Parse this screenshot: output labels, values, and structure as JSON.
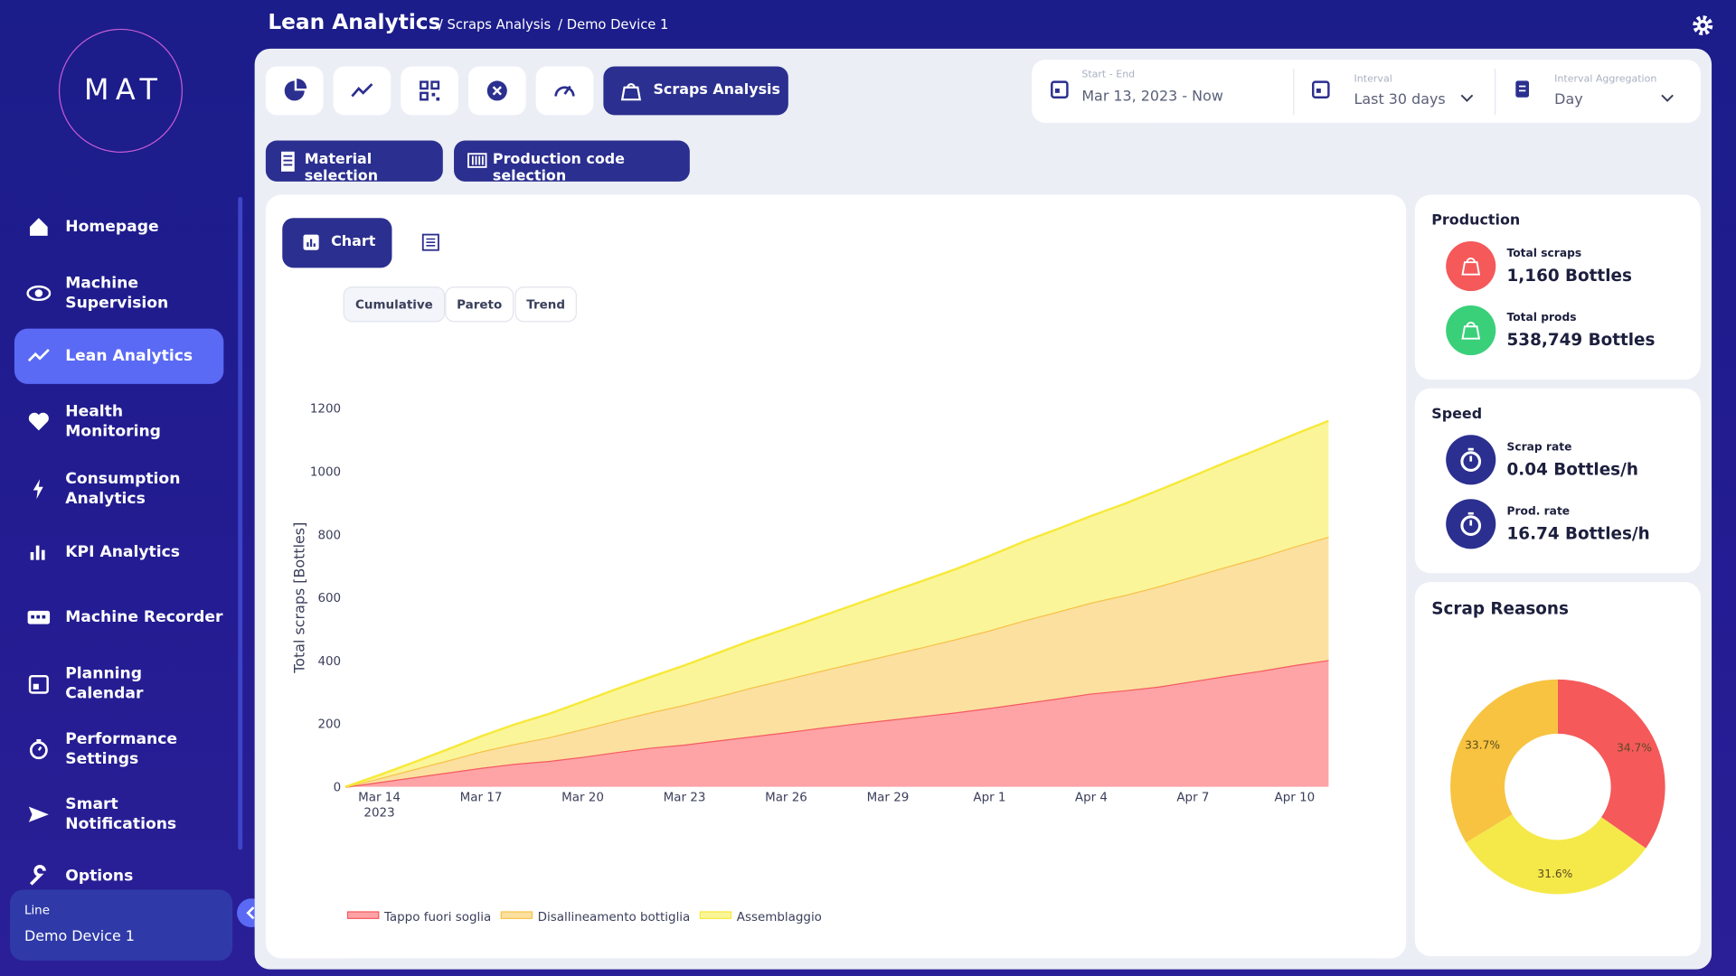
{
  "sidebar": {
    "logo": "MAT",
    "menu": [
      "Homepage",
      "Machine\nSupervision",
      "Lean Analytics",
      "Health Monitoring",
      "Consumption\nAnalytics",
      "KPI Analytics",
      "Machine Recorder",
      "Planning\nCalendar",
      "Performance\nSettings",
      "Smart\nNotifications",
      "Options"
    ],
    "line_label": "Line",
    "line_value": "Demo Device 1"
  },
  "header": {
    "title": "Lean Analytics",
    "breadcrumbs": [
      "/ Scraps Analysis",
      "/ Demo Device 1"
    ]
  },
  "toolbar": {
    "active_tab": "Scraps Analysis",
    "selectors": [
      "Material selection",
      "Production code selection"
    ]
  },
  "filters": [
    {
      "label": "Start - End",
      "value": "Mar 13, 2023 - Now"
    },
    {
      "label": "Interval",
      "value": "Last 30 days"
    },
    {
      "label": "Interval Aggregation",
      "value": "Day"
    }
  ],
  "view_tabs": {
    "chart": "Chart",
    "modes": [
      "Cumulative",
      "Pareto",
      "Trend"
    ]
  },
  "chart_data": {
    "type": "area",
    "stacked": true,
    "ylabel": "Total scraps [Bottles]",
    "categories": [
      null,
      "Mar 14",
      null,
      null,
      "Mar 17",
      null,
      null,
      "Mar 20",
      null,
      null,
      "Mar 23",
      null,
      null,
      "Mar 26",
      null,
      null,
      "Mar 29",
      null,
      null,
      "Apr 1",
      null,
      null,
      "Apr 4",
      null,
      null,
      "Apr 7",
      null,
      null,
      "Apr 10",
      null
    ],
    "x_year_label": "2023",
    "ylim": [
      0,
      1200
    ],
    "yticks": [
      0,
      200,
      400,
      600,
      800,
      1000,
      1200
    ],
    "grid": false,
    "legend": "bottom-left",
    "series": [
      {
        "name": "Tappo fuori soglia",
        "color": "#f55a5f",
        "fill": "#fea3a6",
        "values": [
          0,
          15,
          30,
          45,
          60,
          73,
          82,
          95,
          110,
          124,
          134,
          147,
          160,
          173,
          187,
          200,
          212,
          224,
          236,
          250,
          265,
          280,
          296,
          306,
          318,
          335,
          352,
          368,
          386,
          402
        ]
      },
      {
        "name": "Disallineamento bottiglia",
        "color": "#f7c24a",
        "fill": "#fbe0a0",
        "values": [
          0,
          12,
          25,
          38,
          52,
          63,
          75,
          88,
          100,
          112,
          126,
          140,
          155,
          168,
          180,
          192,
          205,
          218,
          232,
          246,
          262,
          275,
          288,
          302,
          318,
          332,
          346,
          360,
          376,
          391
        ]
      },
      {
        "name": "Assemblaggio",
        "color": "#f7e93a",
        "fill": "#fbf59a",
        "values": [
          0,
          10,
          22,
          35,
          48,
          62,
          74,
          87,
          100,
          112,
          125,
          138,
          150,
          160,
          172,
          185,
          198,
          210,
          222,
          236,
          250,
          262,
          275,
          290,
          305,
          318,
          332,
          345,
          356,
          367
        ]
      }
    ]
  },
  "production": {
    "title": "Production",
    "items": [
      {
        "label": "Total scraps",
        "value": "1,160 Bottles"
      },
      {
        "label": "Total prods",
        "value": "538,749 Bottles"
      }
    ]
  },
  "speed": {
    "title": "Speed",
    "items": [
      {
        "label": "Scrap rate",
        "value": "0.04 Bottles/h"
      },
      {
        "label": "Prod. rate",
        "value": "16.74 Bottles/h"
      }
    ]
  },
  "scrap_reasons": {
    "title": "Scrap Reasons",
    "type": "donut",
    "values": [
      34.7,
      31.6,
      33.7
    ],
    "value_labels": [
      "34.7%",
      "31.6%",
      "33.7%"
    ],
    "colors": [
      "#f5595a",
      "#f5e94a",
      "#f7c340"
    ]
  }
}
